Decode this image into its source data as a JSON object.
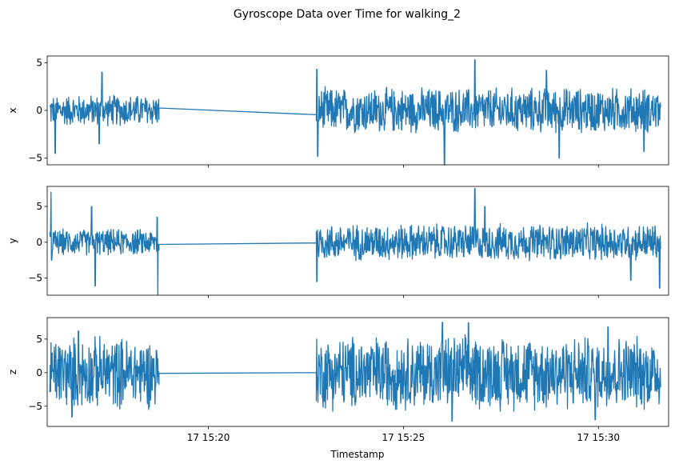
{
  "chart_data": [
    {
      "type": "line",
      "title": "Gyroscope Data over Time for walking_2",
      "xlabel": "Timestamp",
      "ylabel": "x",
      "series": [
        {
          "color": "#1f77b4"
        }
      ],
      "xlim": [
        "15:15:52",
        "15:31:48"
      ],
      "ylim": [
        -5.7,
        5.7
      ],
      "yticks": [
        -5,
        0,
        5
      ],
      "xticks": [
        "17 15:20",
        "17 15:25",
        "17 15:30"
      ],
      "segments": [
        {
          "x": [
            "15:15:56",
            "15:18:44"
          ],
          "center": 0,
          "amplitude": 1.8,
          "spikes": [
            [
              "15:16:04",
              -4.5
            ],
            [
              "15:17:16",
              4.0
            ],
            [
              "15:17:12",
              -3.5
            ]
          ]
        },
        {
          "x": [
            "15:22:46",
            "15:31:36"
          ],
          "center": 0,
          "amplitude": 2.6,
          "spikes": [
            [
              "15:22:47",
              4.3
            ],
            [
              "15:22:48",
              -4.8
            ],
            [
              "15:26:03",
              -5.7
            ],
            [
              "15:26:50",
              5.3
            ],
            [
              "15:28:40",
              4.2
            ],
            [
              "15:29:00",
              -5.0
            ],
            [
              "15:31:10",
              -4.3
            ]
          ]
        }
      ],
      "gap_line": {
        "x": [
          "15:18:44",
          "15:22:46"
        ],
        "y": [
          0.25,
          -0.45
        ]
      },
      "grid": false,
      "legend": "none"
    },
    {
      "type": "line",
      "ylabel": "y",
      "series": [
        {
          "color": "#1f77b4"
        }
      ],
      "xlim": [
        "15:15:52",
        "15:31:48"
      ],
      "ylim": [
        -7.4,
        7.8
      ],
      "yticks": [
        -5,
        0,
        5
      ],
      "segments": [
        {
          "x": [
            "15:15:56",
            "15:18:44"
          ],
          "center": 0,
          "amplitude": 2.0,
          "spikes": [
            [
              "15:15:58",
              7.0
            ],
            [
              "15:15:59",
              -2.5
            ],
            [
              "15:17:06",
              -6.1
            ],
            [
              "15:17:00",
              5.0
            ],
            [
              "15:18:42",
              -7.3
            ],
            [
              "15:18:41",
              3.5
            ]
          ]
        },
        {
          "x": [
            "15:22:46",
            "15:31:36"
          ],
          "center": 0,
          "amplitude": 2.8,
          "spikes": [
            [
              "15:22:47",
              -5.5
            ],
            [
              "15:26:50",
              7.5
            ],
            [
              "15:27:05",
              5.0
            ],
            [
              "15:30:50",
              -5.3
            ],
            [
              "15:31:34",
              -6.4
            ]
          ]
        }
      ],
      "gap_line": {
        "x": [
          "15:18:44",
          "15:22:46"
        ],
        "y": [
          -0.3,
          -0.1
        ]
      },
      "grid": false,
      "legend": "none"
    },
    {
      "type": "line",
      "ylabel": "z",
      "series": [
        {
          "color": "#1f77b4"
        }
      ],
      "xlim": [
        "15:15:52",
        "15:31:48"
      ],
      "ylim": [
        -8.0,
        8.2
      ],
      "yticks": [
        -5,
        0,
        5
      ],
      "xticks": [
        "17 15:20",
        "17 15:25",
        "17 15:30"
      ],
      "segments": [
        {
          "x": [
            "15:15:56",
            "15:18:44"
          ],
          "center": 0,
          "amplitude": 5.8,
          "spikes": [
            [
              "15:16:30",
              -6.6
            ],
            [
              "15:16:40",
              6.2
            ]
          ]
        },
        {
          "x": [
            "15:22:46",
            "15:31:36"
          ],
          "center": 0,
          "amplitude": 6.0,
          "spikes": [
            [
              "15:26:00",
              7.5
            ],
            [
              "15:26:40",
              7.4
            ],
            [
              "15:26:15",
              -7.2
            ],
            [
              "15:29:55",
              -7.0
            ],
            [
              "15:30:15",
              6.8
            ]
          ]
        }
      ],
      "gap_line": {
        "x": [
          "15:18:44",
          "15:22:46"
        ],
        "y": [
          -0.1,
          0.0
        ]
      },
      "grid": false,
      "legend": "none"
    }
  ]
}
